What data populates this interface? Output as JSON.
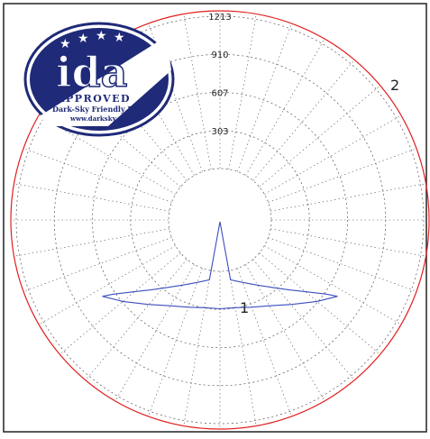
{
  "chart_data": {
    "type": "polar",
    "radial_ticks": [
      "303",
      "607",
      "910",
      "1213"
    ],
    "radial_tick_values": [
      303,
      607,
      910,
      1213
    ],
    "rmax": 1213,
    "grid": true,
    "angle_step_deg": 10,
    "outer_curve_label": "2",
    "series": [
      {
        "label": "1",
        "color": "#3b4fbf",
        "points_deg_value": [
          [
            -57,
            707
          ],
          [
            -55,
            620
          ],
          [
            -50,
            480
          ],
          [
            -45,
            380
          ],
          [
            -40,
            300
          ],
          [
            -30,
            190
          ],
          [
            -20,
            120
          ],
          [
            -10,
            75
          ],
          [
            0,
            0
          ],
          [
            10,
            75
          ],
          [
            20,
            120
          ],
          [
            30,
            190
          ],
          [
            40,
            300
          ],
          [
            45,
            380
          ],
          [
            50,
            480
          ],
          [
            55,
            620
          ],
          [
            57,
            707
          ]
        ]
      },
      {
        "label": "",
        "color": "#3b4fbf",
        "points_deg_value": [
          [
            -57,
            707
          ],
          [
            -50,
            600
          ],
          [
            -40,
            470
          ],
          [
            -30,
            380
          ],
          [
            -20,
            330
          ],
          [
            -10,
            300
          ],
          [
            0,
            298
          ],
          [
            10,
            300
          ],
          [
            20,
            330
          ],
          [
            30,
            380
          ],
          [
            40,
            470
          ],
          [
            50,
            600
          ],
          [
            57,
            707
          ]
        ]
      }
    ]
  },
  "logo": {
    "text": "ida",
    "approved": "APPROVED",
    "tagline": "Dark-Sky Friendly Device",
    "url": "www.darksky.org"
  },
  "colors": {
    "outer_curve": "#e02020",
    "series": "#3b4fbf",
    "grid": "#555555",
    "logo_blue": "#1f2a78"
  }
}
